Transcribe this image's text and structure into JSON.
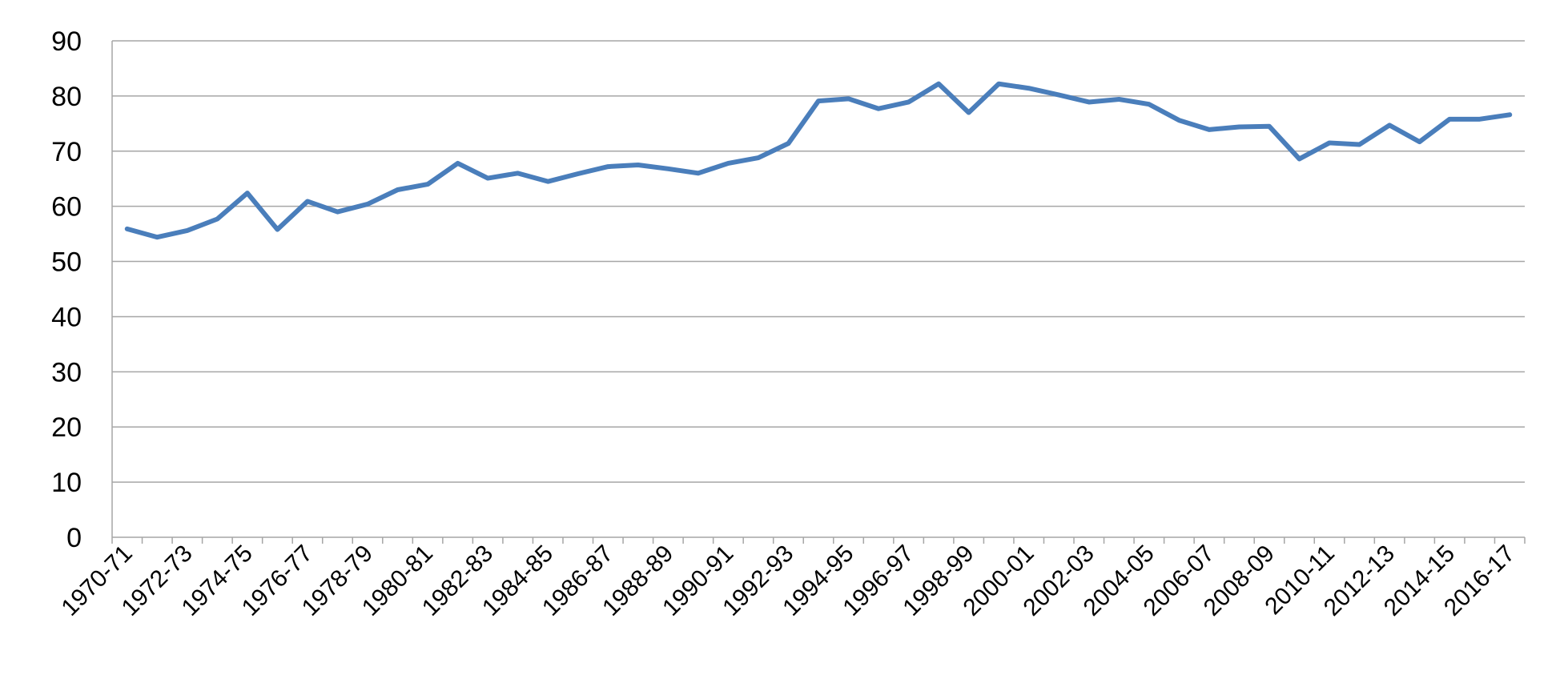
{
  "chart_data": {
    "type": "line",
    "title": "",
    "xlabel": "",
    "ylabel": "",
    "ylim": [
      0,
      90
    ],
    "yticks": [
      0,
      10,
      20,
      30,
      40,
      50,
      60,
      70,
      80,
      90
    ],
    "grid": true,
    "legend": "none",
    "colors": {
      "line": "#4a7ebb",
      "grid": "#a6a6a6",
      "axis": "#a6a6a6",
      "text": "#000000"
    },
    "categories": [
      "1970-71",
      "1971-72",
      "1972-73",
      "1973-74",
      "1974-75",
      "1975-76",
      "1976-77",
      "1977-78",
      "1978-79",
      "1979-80",
      "1980-81",
      "1981-82",
      "1982-83",
      "1983-84",
      "1984-85",
      "1985-86",
      "1986-87",
      "1987-88",
      "1988-89",
      "1989-90",
      "1990-91",
      "1991-92",
      "1992-93",
      "1993-94",
      "1994-95",
      "1995-96",
      "1996-97",
      "1997-98",
      "1998-99",
      "1999-00",
      "2000-01",
      "2001-02",
      "2002-03",
      "2003-04",
      "2004-05",
      "2005-06",
      "2006-07",
      "2007-08",
      "2008-09",
      "2009-10",
      "2010-11",
      "2011-12",
      "2012-13",
      "2013-14",
      "2014-15",
      "2015-16",
      "2016-17"
    ],
    "visible_tick_labels": [
      "1970-71",
      "1972-73",
      "1974-75",
      "1976-77",
      "1978-79",
      "1980-81",
      "1982-83",
      "1984-85",
      "1986-87",
      "1988-89",
      "1990-91",
      "1992-93",
      "1994-95",
      "1996-97",
      "1998-99",
      "2000-01",
      "2002-03",
      "2004-05",
      "2006-07",
      "2008-09",
      "2010-11",
      "2012-13",
      "2014-15",
      "2016-17"
    ],
    "series": [
      {
        "values": [
          55.9,
          54.4,
          55.6,
          57.7,
          62.4,
          55.8,
          60.9,
          59.0,
          60.4,
          63.0,
          64.0,
          67.8,
          65.1,
          66.0,
          64.5,
          65.9,
          67.2,
          67.5,
          66.8,
          66.0,
          67.8,
          68.8,
          71.4,
          79.1,
          79.5,
          77.7,
          78.9,
          82.2,
          77.0,
          82.2,
          81.4,
          80.2,
          78.9,
          79.4,
          78.5,
          75.6,
          73.9,
          74.4,
          74.5,
          68.6,
          71.5,
          71.2,
          74.7,
          71.7,
          75.8,
          75.8,
          76.6
        ]
      }
    ]
  }
}
